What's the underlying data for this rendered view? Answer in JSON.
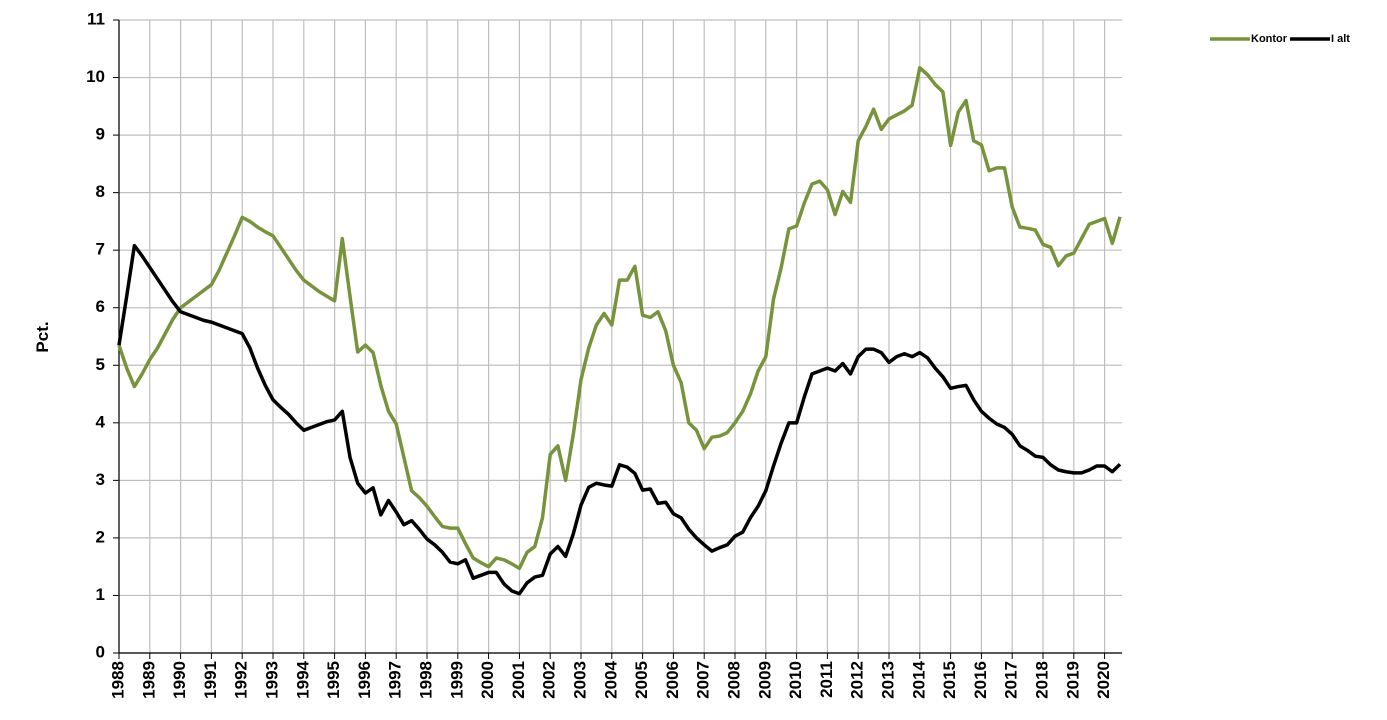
{
  "chart_data": {
    "type": "line",
    "y_label": "Pct.",
    "legend": "top-right",
    "grid": true,
    "categories": [
      "1988",
      null,
      null,
      null,
      "1989",
      null,
      null,
      null,
      "1990",
      null,
      null,
      null,
      "1991",
      null,
      null,
      null,
      "1992",
      null,
      null,
      null,
      "1993",
      null,
      null,
      null,
      "1994",
      null,
      null,
      null,
      "1995",
      null,
      null,
      null,
      "1996",
      null,
      null,
      null,
      "1997",
      null,
      null,
      null,
      "1998",
      null,
      null,
      null,
      "1999",
      null,
      null,
      null,
      "2000",
      null,
      null,
      null,
      "2001",
      null,
      null,
      null,
      "2002",
      null,
      null,
      null,
      "2003",
      null,
      null,
      null,
      "2004",
      null,
      null,
      null,
      "2005",
      null,
      null,
      null,
      "2006",
      null,
      null,
      null,
      "2007",
      null,
      null,
      null,
      "2008",
      null,
      null,
      null,
      "2009",
      null,
      null,
      null,
      "2010",
      null,
      null,
      null,
      "2011",
      null,
      null,
      null,
      "2012",
      null,
      null,
      null,
      "2013",
      null,
      null,
      null,
      "2014",
      null,
      null,
      null,
      "2015",
      null,
      null,
      null,
      "2016",
      null,
      null,
      null,
      "2017",
      null,
      null,
      null,
      "2018",
      null,
      null,
      null,
      "2019",
      null,
      null,
      null,
      "2020",
      null,
      null
    ],
    "ylim": [
      0,
      11
    ],
    "yticks": [
      0,
      1,
      2,
      3,
      4,
      5,
      6,
      7,
      8,
      9,
      10,
      11
    ],
    "series": [
      {
        "name": "Kontor",
        "color": "#77933c",
        "values": [
          5.35,
          4.95,
          4.63,
          4.85,
          5.1,
          5.3,
          5.55,
          5.8,
          6.0,
          6.1,
          6.2,
          6.3,
          6.4,
          6.65,
          6.95,
          7.25,
          7.57,
          7.5,
          7.4,
          7.32,
          7.25,
          7.05,
          6.85,
          6.65,
          6.48,
          6.38,
          6.28,
          6.2,
          6.12,
          7.2,
          6.2,
          5.23,
          5.35,
          5.22,
          4.65,
          4.2,
          3.98,
          3.4,
          2.82,
          2.7,
          2.55,
          2.37,
          2.2,
          2.17,
          2.17,
          1.9,
          1.65,
          1.57,
          1.5,
          1.65,
          1.62,
          1.55,
          1.47,
          1.75,
          1.85,
          2.35,
          3.45,
          3.6,
          3.0,
          3.8,
          4.75,
          5.3,
          5.7,
          5.9,
          5.7,
          6.48,
          6.48,
          6.72,
          5.87,
          5.83,
          5.93,
          5.6,
          5.0,
          4.7,
          4.0,
          3.87,
          3.55,
          3.75,
          3.77,
          3.83,
          4.0,
          4.2,
          4.5,
          4.9,
          5.15,
          6.15,
          6.7,
          7.37,
          7.42,
          7.82,
          8.15,
          8.2,
          8.05,
          7.62,
          8.02,
          7.83,
          8.9,
          9.15,
          9.45,
          9.1,
          9.28,
          9.35,
          9.42,
          9.52,
          10.17,
          10.05,
          9.88,
          9.75,
          8.82,
          9.4,
          9.6,
          8.9,
          8.83,
          8.38,
          8.43,
          8.43,
          7.75,
          7.4,
          7.38,
          7.35,
          7.1,
          7.05,
          6.73,
          6.9,
          6.95,
          7.2,
          7.45,
          7.5,
          7.55,
          7.12,
          7.58
        ]
      },
      {
        "name": "I alt",
        "color": "#000000",
        "values": [
          5.35,
          6.2,
          7.08,
          6.9,
          6.7,
          6.5,
          6.3,
          6.1,
          5.93,
          5.88,
          5.83,
          5.78,
          5.75,
          5.7,
          5.65,
          5.6,
          5.55,
          5.3,
          4.95,
          4.65,
          4.4,
          4.27,
          4.15,
          4.0,
          3.87,
          3.92,
          3.97,
          4.02,
          4.05,
          4.2,
          3.4,
          2.95,
          2.78,
          2.87,
          2.4,
          2.65,
          2.45,
          2.23,
          2.3,
          2.15,
          1.98,
          1.88,
          1.75,
          1.58,
          1.55,
          1.62,
          1.3,
          1.35,
          1.4,
          1.4,
          1.2,
          1.08,
          1.03,
          1.22,
          1.32,
          1.35,
          1.72,
          1.85,
          1.68,
          2.07,
          2.57,
          2.88,
          2.95,
          2.92,
          2.9,
          3.27,
          3.23,
          3.12,
          2.83,
          2.85,
          2.6,
          2.62,
          2.42,
          2.35,
          2.15,
          2.0,
          1.88,
          1.77,
          1.83,
          1.88,
          2.03,
          2.1,
          2.35,
          2.55,
          2.82,
          3.25,
          3.65,
          4.0,
          4.0,
          4.45,
          4.85,
          4.9,
          4.95,
          4.9,
          5.03,
          4.85,
          5.15,
          5.28,
          5.28,
          5.22,
          5.05,
          5.15,
          5.2,
          5.15,
          5.22,
          5.13,
          4.95,
          4.8,
          4.6,
          4.63,
          4.65,
          4.4,
          4.2,
          4.08,
          3.98,
          3.92,
          3.8,
          3.6,
          3.52,
          3.42,
          3.4,
          3.27,
          3.18,
          3.15,
          3.13,
          3.13,
          3.18,
          3.25,
          3.25,
          3.15,
          3.28
        ]
      }
    ]
  }
}
